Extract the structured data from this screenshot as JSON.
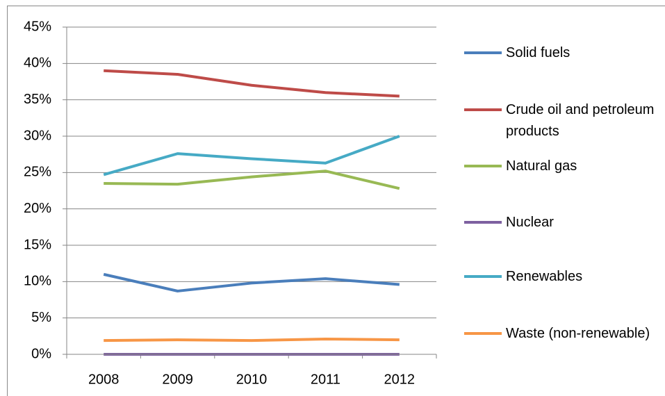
{
  "chart_data": {
    "type": "line",
    "categories": [
      "2008",
      "2009",
      "2010",
      "2011",
      "2012"
    ],
    "series": [
      {
        "name": "Solid fuels",
        "color": "#4a7ebb",
        "values": [
          11.0,
          8.7,
          9.8,
          10.4,
          9.6
        ]
      },
      {
        "name": "Crude oil and petroleum products",
        "color": "#be4b48",
        "values": [
          39.0,
          38.5,
          37.0,
          36.0,
          35.5
        ]
      },
      {
        "name": "Natural gas",
        "color": "#98b954",
        "values": [
          23.5,
          23.4,
          24.4,
          25.2,
          22.8
        ]
      },
      {
        "name": "Nuclear",
        "color": "#7d60a0",
        "values": [
          0,
          0,
          0,
          0,
          0
        ]
      },
      {
        "name": "Renewables",
        "color": "#46aac5",
        "values": [
          24.7,
          27.6,
          26.9,
          26.3,
          30.0
        ]
      },
      {
        "name": "Waste (non-renewable)",
        "color": "#f79646",
        "values": [
          1.9,
          2.0,
          1.9,
          2.1,
          2.0
        ]
      }
    ],
    "ylim": [
      0,
      45
    ],
    "yticks": [
      {
        "value": 0,
        "label": "0%"
      },
      {
        "value": 5,
        "label": "5%"
      },
      {
        "value": 10,
        "label": "10%"
      },
      {
        "value": 15,
        "label": "15%"
      },
      {
        "value": 20,
        "label": "20%"
      },
      {
        "value": 25,
        "label": "25%"
      },
      {
        "value": 30,
        "label": "30%"
      },
      {
        "value": 35,
        "label": "35%"
      },
      {
        "value": 40,
        "label": "40%"
      },
      {
        "value": 45,
        "label": "45%"
      }
    ],
    "grid": true,
    "legend": "right"
  }
}
